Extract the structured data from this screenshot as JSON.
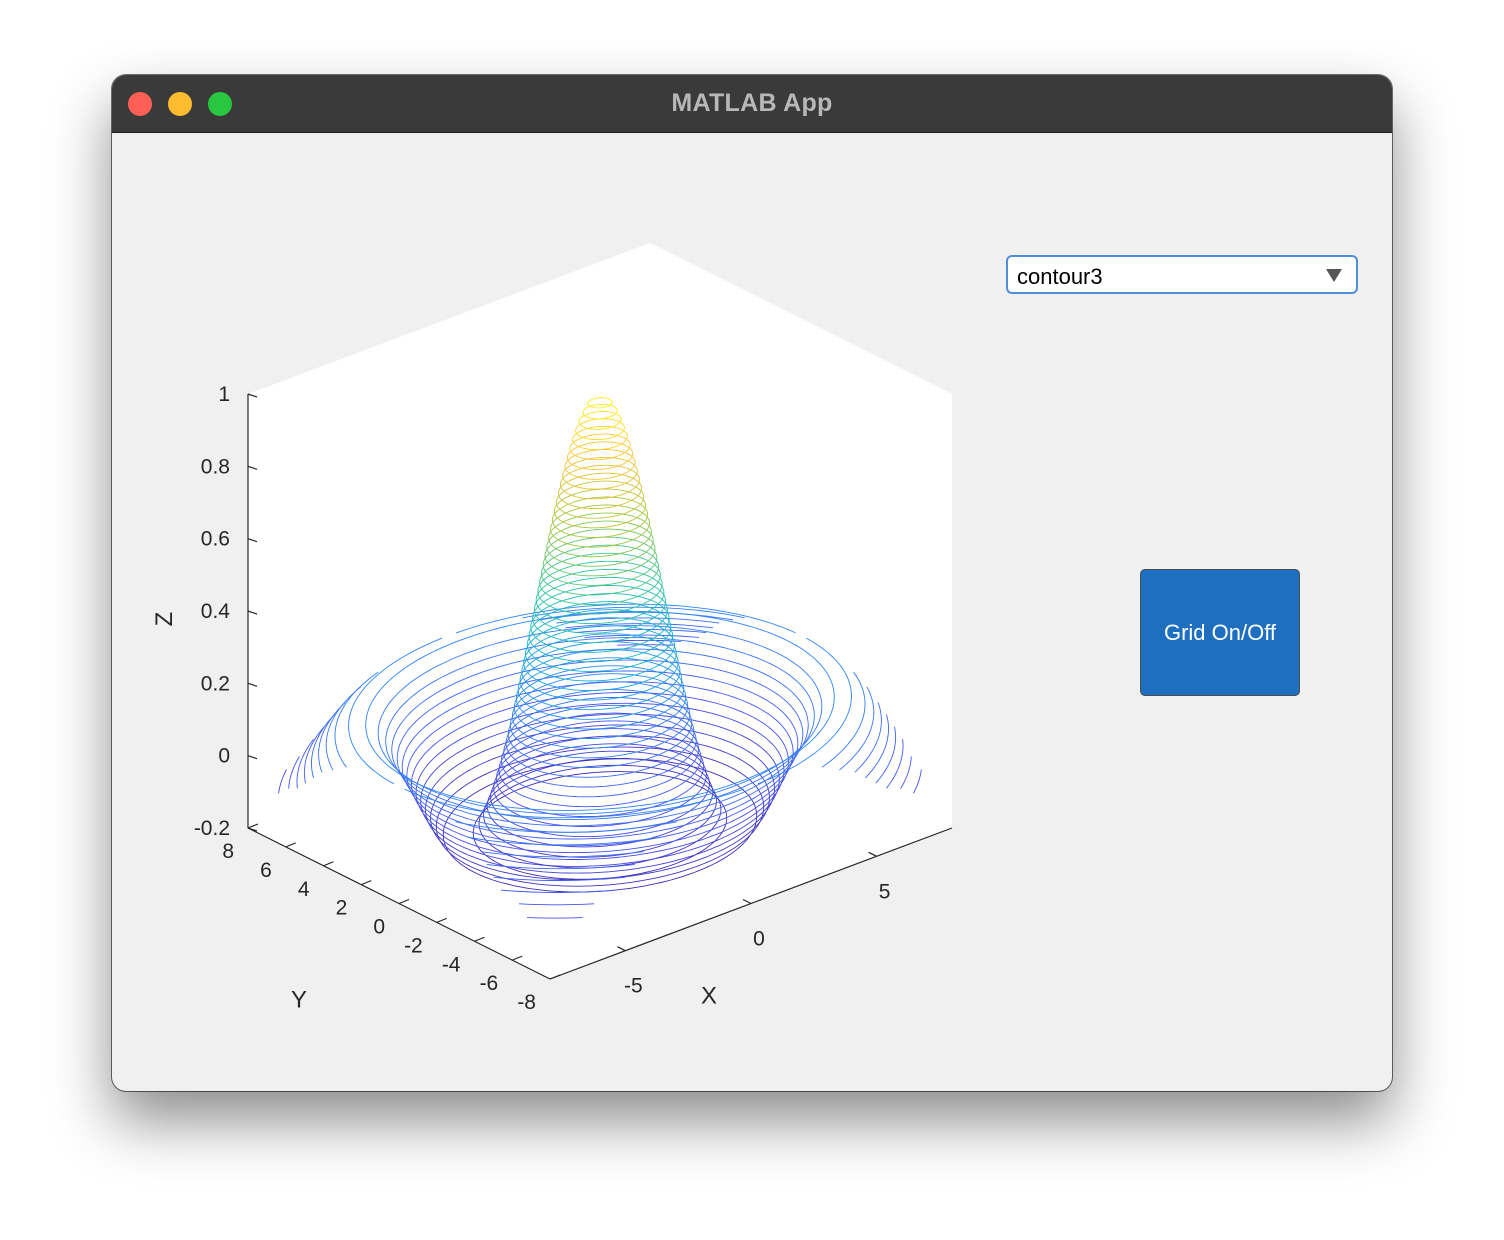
{
  "window": {
    "title": "MATLAB App",
    "traffic_lights": {
      "close": "#fe5f57",
      "minimize": "#febc2e",
      "maximize": "#28c840"
    }
  },
  "controls": {
    "plot_type_dropdown": {
      "value": "contour3"
    },
    "grid_button": {
      "label": "Grid On/Off",
      "color": "#1e6fbf"
    }
  },
  "chart_data": {
    "type": "contour3",
    "function": "sin(r)/r",
    "xlabel": "X",
    "ylabel": "Y",
    "zlabel": "Z",
    "xlim": [
      -8,
      8
    ],
    "ylim": [
      -8,
      8
    ],
    "zlim": [
      -0.2,
      1
    ],
    "xticks": [
      -5,
      0,
      5
    ],
    "yticks": [
      -8,
      -6,
      -4,
      -2,
      0,
      2,
      4,
      6,
      8
    ],
    "zticks": [
      -0.2,
      0,
      0.2,
      0.4,
      0.6,
      0.8,
      1
    ],
    "xtick_labels": [
      "-5",
      "0",
      "5"
    ],
    "ytick_labels": [
      "-8",
      "-6",
      "-4",
      "-2",
      "0",
      "2",
      "4",
      "6",
      "8"
    ],
    "ztick_labels": [
      "-0.2",
      "0",
      "0.2",
      "0.4",
      "0.6",
      "0.8",
      "1"
    ],
    "contour_levels": 50,
    "colormap": "parula",
    "grid": false,
    "view": "3-D default"
  }
}
